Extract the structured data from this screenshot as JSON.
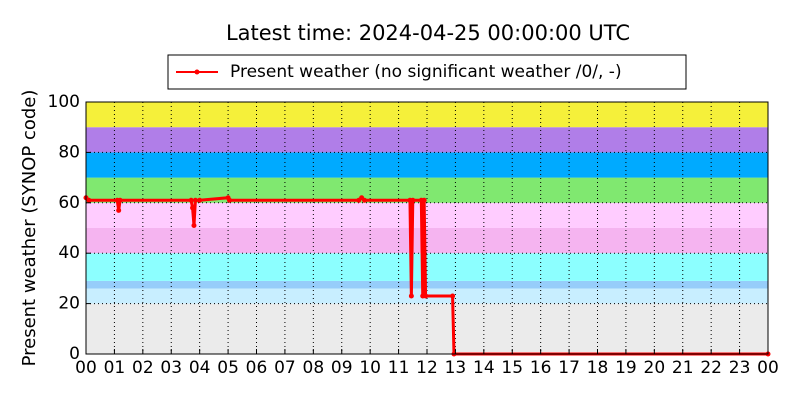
{
  "chart_data": {
    "type": "line",
    "title": "Latest time: 2024-04-25 00:00:00 UTC",
    "ylabel": "Present weather (SYNOP code)",
    "x": [
      0,
      0.1,
      1.1,
      1.15,
      1.2,
      3.7,
      3.75,
      3.8,
      3.85,
      4.0,
      5.0,
      5.05,
      9.6,
      9.7,
      9.8,
      11.4,
      11.45,
      11.5,
      11.8,
      11.85,
      11.9,
      11.95,
      12.9,
      12.95,
      24
    ],
    "series": [
      {
        "name": "Present weather (no significant weather /0/, -)",
        "color": "#ff0000",
        "values": [
          62,
          61,
          61,
          57,
          61,
          61,
          58,
          51,
          61,
          61,
          62,
          61,
          61,
          62,
          61,
          61,
          23,
          61,
          61,
          23,
          61,
          23,
          23,
          0,
          0
        ]
      }
    ],
    "xlim": [
      0,
      24
    ],
    "xticks": [
      {
        "value": 0,
        "label": "00"
      },
      {
        "value": 1,
        "label": "01"
      },
      {
        "value": 2,
        "label": "02"
      },
      {
        "value": 3,
        "label": "03"
      },
      {
        "value": 4,
        "label": "04"
      },
      {
        "value": 5,
        "label": "05"
      },
      {
        "value": 6,
        "label": "06"
      },
      {
        "value": 7,
        "label": "07"
      },
      {
        "value": 8,
        "label": "08"
      },
      {
        "value": 9,
        "label": "09"
      },
      {
        "value": 10,
        "label": "10"
      },
      {
        "value": 11,
        "label": "11"
      },
      {
        "value": 12,
        "label": "12"
      },
      {
        "value": 13,
        "label": "13"
      },
      {
        "value": 14,
        "label": "14"
      },
      {
        "value": 15,
        "label": "15"
      },
      {
        "value": 16,
        "label": "16"
      },
      {
        "value": 17,
        "label": "17"
      },
      {
        "value": 18,
        "label": "18"
      },
      {
        "value": 19,
        "label": "19"
      },
      {
        "value": 20,
        "label": "20"
      },
      {
        "value": 21,
        "label": "21"
      },
      {
        "value": 22,
        "label": "22"
      },
      {
        "value": 23,
        "label": "23"
      },
      {
        "value": 24,
        "label": "00"
      }
    ],
    "ylim": [
      0,
      100
    ],
    "yticks": [
      0,
      20,
      40,
      60,
      80,
      100
    ],
    "grid": true,
    "legend": "top",
    "bands": [
      {
        "from": 0,
        "to": 20,
        "color": "#ebebeb"
      },
      {
        "from": 20,
        "to": 26,
        "color": "#c8eeff"
      },
      {
        "from": 26,
        "to": 29,
        "color": "#96cdfa"
      },
      {
        "from": 29,
        "to": 40,
        "color": "#8cffff"
      },
      {
        "from": 40,
        "to": 50,
        "color": "#f5b4f0"
      },
      {
        "from": 50,
        "to": 60,
        "color": "#ffccff"
      },
      {
        "from": 60,
        "to": 70,
        "color": "#80e870"
      },
      {
        "from": 70,
        "to": 80,
        "color": "#00aaff"
      },
      {
        "from": 80,
        "to": 90,
        "color": "#b07ee8"
      },
      {
        "from": 90,
        "to": 100,
        "color": "#f5f03a"
      }
    ]
  }
}
